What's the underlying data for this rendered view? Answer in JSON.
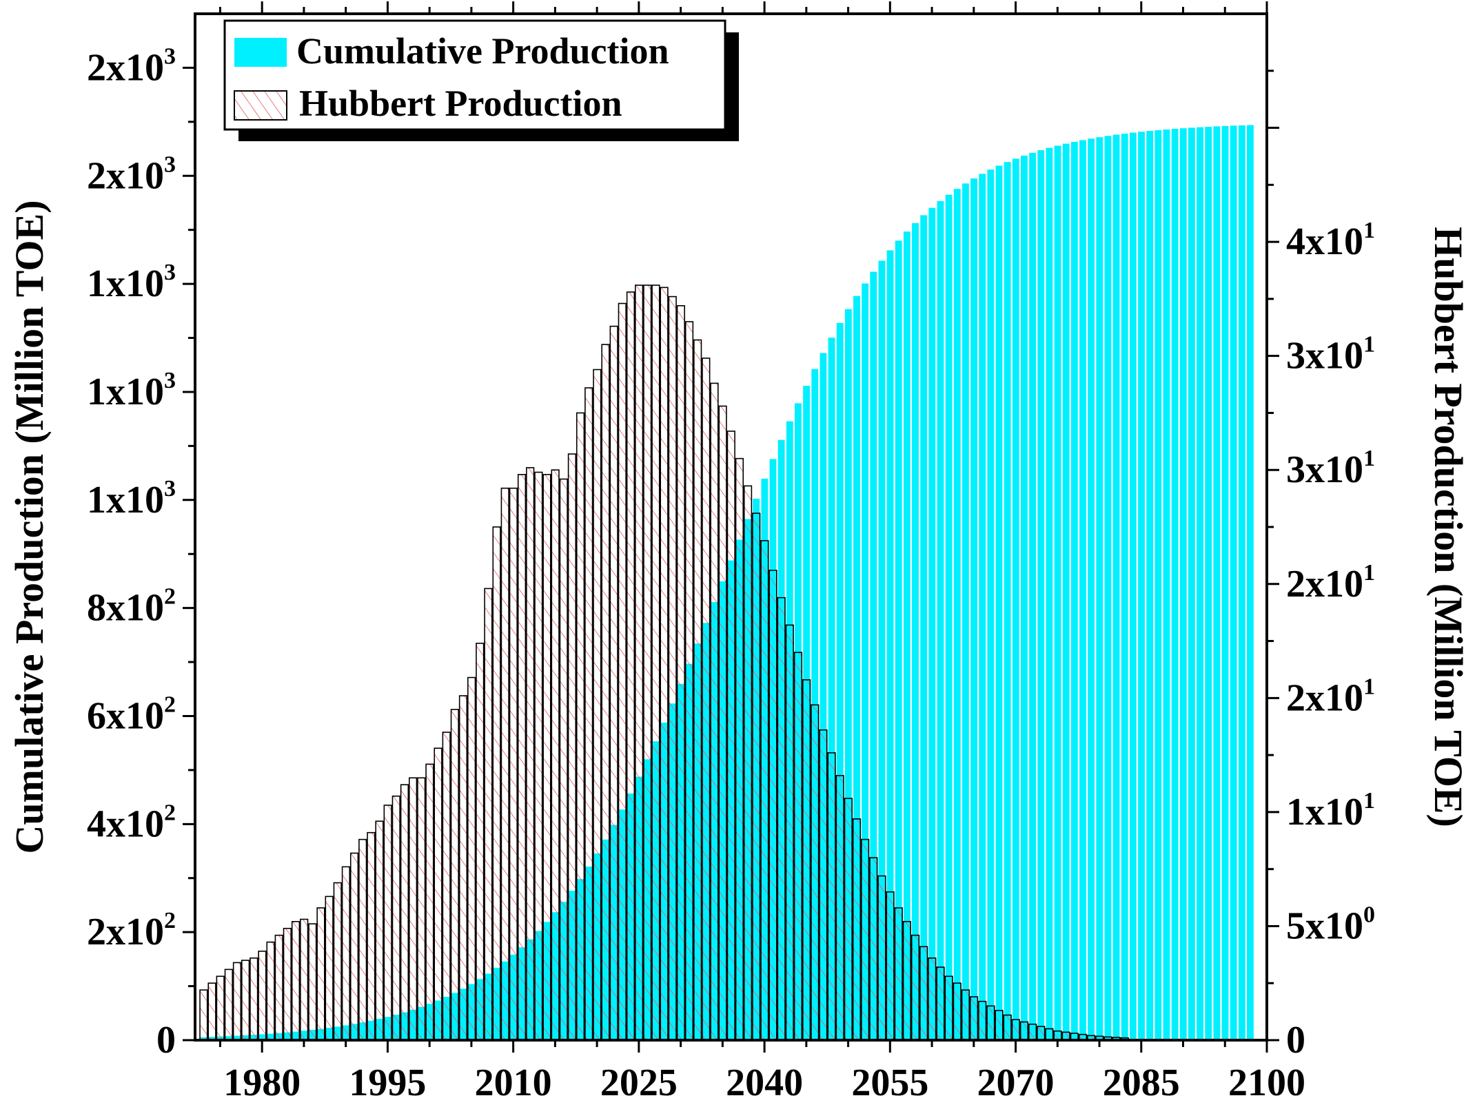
{
  "chart_data": {
    "type": "bar",
    "title": "",
    "xlabel": "",
    "x_tick_labels": [
      "1980",
      "1995",
      "2010",
      "2025",
      "2040",
      "2055",
      "2070",
      "2085",
      "2100"
    ],
    "x_range": [
      1972,
      2100
    ],
    "left_axis": {
      "label": "Cumulative Production (Million TOE)",
      "range": [
        0,
        1900
      ],
      "ticks": [
        {
          "value": 0,
          "base": "0",
          "exp": ""
        },
        {
          "value": 200,
          "base": "2x10",
          "exp": "2"
        },
        {
          "value": 400,
          "base": "4x10",
          "exp": "2"
        },
        {
          "value": 600,
          "base": "6x10",
          "exp": "2"
        },
        {
          "value": 800,
          "base": "8x10",
          "exp": "2"
        },
        {
          "value": 1000,
          "base": "1x10",
          "exp": "3"
        },
        {
          "value": 1200,
          "base": "1x10",
          "exp": "3"
        },
        {
          "value": 1400,
          "base": "1x10",
          "exp": "3"
        },
        {
          "value": 1600,
          "base": "2x10",
          "exp": "3"
        },
        {
          "value": 1800,
          "base": "2x10",
          "exp": "3"
        }
      ]
    },
    "right_axis": {
      "label": "Hubbert Production (Million TOE)",
      "range": [
        0,
        45
      ],
      "ticks": [
        {
          "value": 0,
          "base": "0",
          "exp": ""
        },
        {
          "value": 5,
          "base": "5x10",
          "exp": "0"
        },
        {
          "value": 10,
          "base": "1x10",
          "exp": "1"
        },
        {
          "value": 15,
          "base": "2x10",
          "exp": "1"
        },
        {
          "value": 20,
          "base": "2x10",
          "exp": "1"
        },
        {
          "value": 25,
          "base": "3x10",
          "exp": "1"
        },
        {
          "value": 30,
          "base": "3x10",
          "exp": "1"
        },
        {
          "value": 35,
          "base": "4x10",
          "exp": "1"
        }
      ]
    },
    "legend": {
      "position": "top-left",
      "entries": [
        "Cumulative Production",
        "Hubbert Production"
      ]
    },
    "colors": {
      "cumulative": "#00f0ff",
      "hubbert_edge": "#000000",
      "hubbert_hatch": "#e05a5a"
    },
    "series": [
      {
        "name": "Hubbert Production",
        "axis": "right",
        "x_start": 1973,
        "step": 1,
        "values": [
          2.2,
          2.5,
          2.8,
          3.1,
          3.4,
          3.5,
          3.6,
          3.9,
          4.3,
          4.6,
          4.9,
          5.2,
          5.3,
          5.1,
          5.8,
          6.3,
          6.9,
          7.6,
          8.2,
          8.8,
          9.1,
          9.6,
          10.3,
          10.7,
          11.2,
          11.5,
          11.5,
          12.1,
          12.8,
          13.5,
          14.5,
          15.1,
          15.9,
          17.4,
          19.8,
          22.5,
          24.2,
          24.2,
          24.8,
          25.1,
          24.9,
          24.8,
          25.0,
          24.6,
          25.7,
          27.5,
          28.6,
          29.4,
          30.5,
          31.3,
          32.3,
          32.8,
          33.1,
          33.1,
          33.1,
          33.0,
          32.6,
          32.2,
          31.5,
          30.7,
          29.9,
          28.8,
          27.8,
          26.7,
          25.5,
          24.3,
          23.1,
          21.9,
          20.6,
          19.4,
          18.2,
          17.0,
          15.8,
          14.7,
          13.6,
          12.6,
          11.6,
          10.6,
          9.7,
          8.8,
          8.0,
          7.2,
          6.5,
          5.8,
          5.2,
          4.6,
          4.1,
          3.6,
          3.2,
          2.8,
          2.5,
          2.2,
          1.9,
          1.7,
          1.5,
          1.3,
          1.1,
          0.9,
          0.8,
          0.7,
          0.6,
          0.5,
          0.4,
          0.35,
          0.3,
          0.25,
          0.2,
          0.17,
          0.14,
          0.12,
          0.1
        ]
      },
      {
        "name": "Cumulative Production",
        "axis": "left",
        "x_start": 1973,
        "x_end": 2098,
        "step": 1,
        "total": 1700,
        "peak_year": 2035,
        "logistic_width": 11
      }
    ]
  }
}
